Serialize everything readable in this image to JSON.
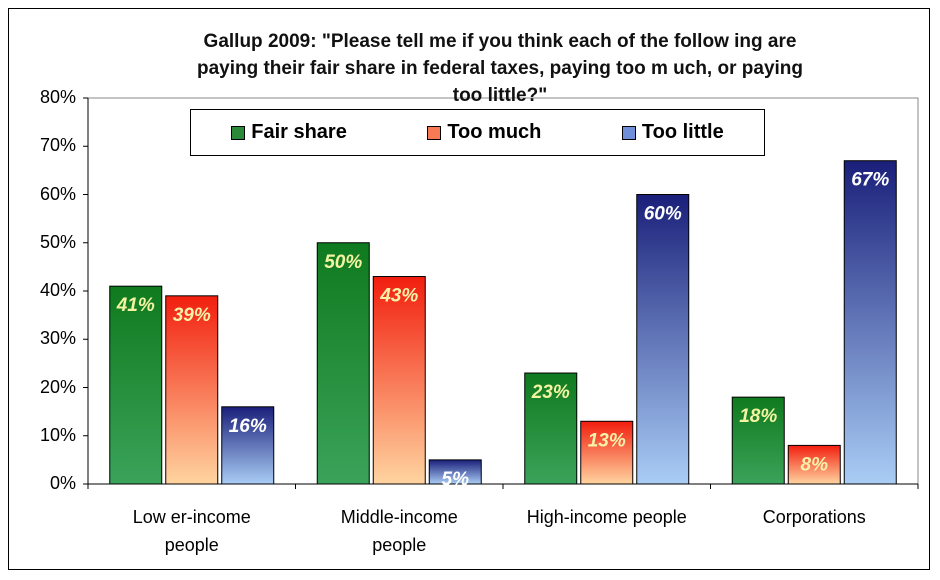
{
  "chart_data": {
    "type": "bar",
    "title_lines": [
      "Gallup 2009: \"Please tell me if you think each of the follow ing are",
      "paying their fair share in federal taxes, paying too m uch, or paying",
      "too little?\""
    ],
    "categories": [
      [
        "Low er-income",
        "people"
      ],
      [
        "Middle-income",
        "people"
      ],
      [
        "High-income people"
      ],
      [
        "Corporations"
      ]
    ],
    "series": [
      {
        "name": "Fair share",
        "values": [
          41,
          50,
          23,
          18
        ],
        "labels": [
          "41%",
          "50%",
          "23%",
          "18%"
        ],
        "color_top": "#0f7a1e",
        "color_bottom": "#3aa35a",
        "label_color": "#f3f3a0"
      },
      {
        "name": "Too much",
        "values": [
          39,
          43,
          13,
          8
        ],
        "labels": [
          "39%",
          "43%",
          "13%",
          "8%"
        ],
        "color_top": "#f21e0e",
        "color_bottom": "#ffd4a0",
        "label_color": "#f7f2a8"
      },
      {
        "name": "Too little",
        "values": [
          16,
          5,
          60,
          67
        ],
        "labels": [
          "16%",
          "5%",
          "60%",
          "67%"
        ],
        "color_top": "#1a1f7a",
        "color_bottom": "#a9cdf5",
        "label_color": "#ffffff"
      }
    ],
    "ylim": [
      0,
      80
    ],
    "yticks": [
      "0%",
      "10%",
      "20%",
      "30%",
      "40%",
      "50%",
      "60%",
      "70%",
      "80%"
    ],
    "legend_position": "top",
    "grid": false
  },
  "legend": {
    "items": [
      {
        "label": "Fair share",
        "color": "#2a8a3a"
      },
      {
        "label": "Too much",
        "color": "#f77a55"
      },
      {
        "label": "Too little",
        "color": "#6f8fd8"
      }
    ]
  }
}
